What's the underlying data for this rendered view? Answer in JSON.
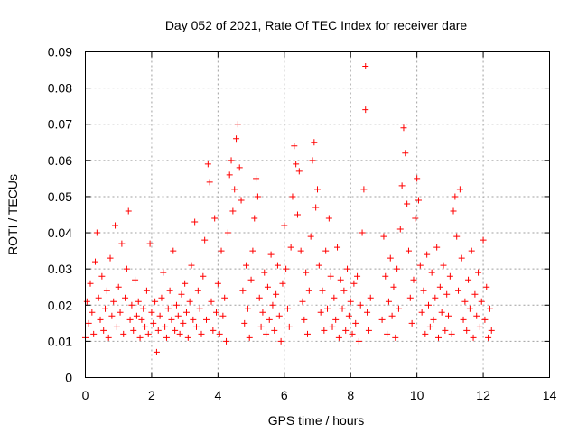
{
  "chart_data": {
    "type": "scatter",
    "title": "Day 052 of 2021, Rate Of TEC Index for receiver dare",
    "xlabel": "GPS time / hours",
    "ylabel": "ROTI / TECUs",
    "xlim": [
      0,
      14
    ],
    "ylim": [
      0,
      0.09
    ],
    "x_ticks": [
      "0",
      "2",
      "4",
      "6",
      "8",
      "10",
      "12",
      "14"
    ],
    "y_ticks": [
      "0",
      "0.01",
      "0.02",
      "0.03",
      "0.04",
      "0.05",
      "0.06",
      "0.07",
      "0.08",
      "0.09"
    ],
    "grid": true,
    "marker": "+",
    "color": "#ff0000",
    "series": [
      {
        "values": [
          [
            0.0,
            0.011
          ],
          [
            0.05,
            0.021
          ],
          [
            0.1,
            0.015
          ],
          [
            0.15,
            0.026
          ],
          [
            0.2,
            0.018
          ],
          [
            0.25,
            0.012
          ],
          [
            0.3,
            0.032
          ],
          [
            0.35,
            0.04
          ],
          [
            0.4,
            0.022
          ],
          [
            0.45,
            0.016
          ],
          [
            0.5,
            0.028
          ],
          [
            0.55,
            0.013
          ],
          [
            0.6,
            0.019
          ],
          [
            0.65,
            0.024
          ],
          [
            0.7,
            0.011
          ],
          [
            0.75,
            0.033
          ],
          [
            0.8,
            0.017
          ],
          [
            0.85,
            0.021
          ],
          [
            0.9,
            0.042
          ],
          [
            0.95,
            0.014
          ],
          [
            1.0,
            0.025
          ],
          [
            1.05,
            0.018
          ],
          [
            1.1,
            0.037
          ],
          [
            1.15,
            0.012
          ],
          [
            1.2,
            0.022
          ],
          [
            1.25,
            0.03
          ],
          [
            1.3,
            0.046
          ],
          [
            1.35,
            0.016
          ],
          [
            1.4,
            0.02
          ],
          [
            1.45,
            0.013
          ],
          [
            1.5,
            0.027
          ],
          [
            1.55,
            0.017
          ],
          [
            1.6,
            0.021
          ],
          [
            1.65,
            0.011
          ],
          [
            1.7,
            0.016
          ],
          [
            1.75,
            0.019
          ],
          [
            1.8,
            0.014
          ],
          [
            1.85,
            0.024
          ],
          [
            1.9,
            0.012
          ],
          [
            1.95,
            0.037
          ],
          [
            2.0,
            0.018
          ],
          [
            2.05,
            0.015
          ],
          [
            2.1,
            0.021
          ],
          [
            2.15,
            0.007
          ],
          [
            2.2,
            0.013
          ],
          [
            2.25,
            0.017
          ],
          [
            2.3,
            0.022
          ],
          [
            2.35,
            0.029
          ],
          [
            2.4,
            0.014
          ],
          [
            2.45,
            0.011
          ],
          [
            2.5,
            0.019
          ],
          [
            2.55,
            0.024
          ],
          [
            2.6,
            0.016
          ],
          [
            2.65,
            0.035
          ],
          [
            2.7,
            0.013
          ],
          [
            2.75,
            0.02
          ],
          [
            2.8,
            0.017
          ],
          [
            2.85,
            0.012
          ],
          [
            2.9,
            0.023
          ],
          [
            2.95,
            0.015
          ],
          [
            3.0,
            0.026
          ],
          [
            3.05,
            0.018
          ],
          [
            3.1,
            0.011
          ],
          [
            3.15,
            0.021
          ],
          [
            3.2,
            0.031
          ],
          [
            3.25,
            0.016
          ],
          [
            3.3,
            0.043
          ],
          [
            3.35,
            0.014
          ],
          [
            3.4,
            0.024
          ],
          [
            3.45,
            0.019
          ],
          [
            3.5,
            0.012
          ],
          [
            3.55,
            0.028
          ],
          [
            3.6,
            0.038
          ],
          [
            3.65,
            0.016
          ],
          [
            3.7,
            0.059
          ],
          [
            3.75,
            0.054
          ],
          [
            3.8,
            0.021
          ],
          [
            3.85,
            0.013
          ],
          [
            3.9,
            0.044
          ],
          [
            3.95,
            0.018
          ],
          [
            4.0,
            0.026
          ],
          [
            4.05,
            0.012
          ],
          [
            4.1,
            0.035
          ],
          [
            4.15,
            0.017
          ],
          [
            4.2,
            0.022
          ],
          [
            4.25,
            0.01
          ],
          [
            4.3,
            0.04
          ],
          [
            4.35,
            0.056
          ],
          [
            4.4,
            0.06
          ],
          [
            4.45,
            0.046
          ],
          [
            4.5,
            0.052
          ],
          [
            4.55,
            0.066
          ],
          [
            4.6,
            0.07
          ],
          [
            4.65,
            0.058
          ],
          [
            4.7,
            0.049
          ],
          [
            4.75,
            0.024
          ],
          [
            4.8,
            0.015
          ],
          [
            4.85,
            0.031
          ],
          [
            4.9,
            0.019
          ],
          [
            4.95,
            0.011
          ],
          [
            5.0,
            0.027
          ],
          [
            5.05,
            0.035
          ],
          [
            5.1,
            0.044
          ],
          [
            5.15,
            0.055
          ],
          [
            5.2,
            0.05
          ],
          [
            5.25,
            0.022
          ],
          [
            5.3,
            0.014
          ],
          [
            5.35,
            0.018
          ],
          [
            5.4,
            0.029
          ],
          [
            5.45,
            0.012
          ],
          [
            5.5,
            0.025
          ],
          [
            5.55,
            0.016
          ],
          [
            5.6,
            0.034
          ],
          [
            5.65,
            0.02
          ],
          [
            5.7,
            0.013
          ],
          [
            5.75,
            0.023
          ],
          [
            5.8,
            0.031
          ],
          [
            5.85,
            0.017
          ],
          [
            5.9,
            0.01
          ],
          [
            5.95,
            0.026
          ],
          [
            6.0,
            0.042
          ],
          [
            6.05,
            0.03
          ],
          [
            6.1,
            0.019
          ],
          [
            6.15,
            0.014
          ],
          [
            6.2,
            0.036
          ],
          [
            6.25,
            0.05
          ],
          [
            6.3,
            0.064
          ],
          [
            6.35,
            0.059
          ],
          [
            6.4,
            0.045
          ],
          [
            6.45,
            0.057
          ],
          [
            6.5,
            0.035
          ],
          [
            6.55,
            0.021
          ],
          [
            6.6,
            0.016
          ],
          [
            6.65,
            0.029
          ],
          [
            6.7,
            0.012
          ],
          [
            6.75,
            0.024
          ],
          [
            6.8,
            0.039
          ],
          [
            6.85,
            0.06
          ],
          [
            6.9,
            0.065
          ],
          [
            6.95,
            0.047
          ],
          [
            7.0,
            0.052
          ],
          [
            7.05,
            0.031
          ],
          [
            7.1,
            0.018
          ],
          [
            7.15,
            0.024
          ],
          [
            7.2,
            0.013
          ],
          [
            7.25,
            0.035
          ],
          [
            7.3,
            0.019
          ],
          [
            7.35,
            0.044
          ],
          [
            7.4,
            0.028
          ],
          [
            7.45,
            0.014
          ],
          [
            7.5,
            0.022
          ],
          [
            7.55,
            0.016
          ],
          [
            7.6,
            0.036
          ],
          [
            7.65,
            0.011
          ],
          [
            7.7,
            0.027
          ],
          [
            7.75,
            0.019
          ],
          [
            7.8,
            0.024
          ],
          [
            7.85,
            0.013
          ],
          [
            7.9,
            0.03
          ],
          [
            7.95,
            0.017
          ],
          [
            8.0,
            0.021
          ],
          [
            8.05,
            0.012
          ],
          [
            8.1,
            0.026
          ],
          [
            8.15,
            0.015
          ],
          [
            8.2,
            0.028
          ],
          [
            8.25,
            0.01
          ],
          [
            8.3,
            0.02
          ],
          [
            8.35,
            0.04
          ],
          [
            8.4,
            0.052
          ],
          [
            8.45,
            0.074
          ],
          [
            8.45,
            0.086
          ],
          [
            8.5,
            0.018
          ],
          [
            8.55,
            0.013
          ],
          [
            8.6,
            0.022
          ],
          [
            8.95,
            0.016
          ],
          [
            9.0,
            0.039
          ],
          [
            9.05,
            0.028
          ],
          [
            9.1,
            0.012
          ],
          [
            9.15,
            0.021
          ],
          [
            9.2,
            0.033
          ],
          [
            9.25,
            0.017
          ],
          [
            9.3,
            0.025
          ],
          [
            9.35,
            0.011
          ],
          [
            9.4,
            0.03
          ],
          [
            9.45,
            0.019
          ],
          [
            9.5,
            0.041
          ],
          [
            9.55,
            0.053
          ],
          [
            9.6,
            0.069
          ],
          [
            9.65,
            0.062
          ],
          [
            9.7,
            0.048
          ],
          [
            9.75,
            0.035
          ],
          [
            9.8,
            0.022
          ],
          [
            9.85,
            0.015
          ],
          [
            9.9,
            0.027
          ],
          [
            9.95,
            0.044
          ],
          [
            10.0,
            0.055
          ],
          [
            10.05,
            0.049
          ],
          [
            10.1,
            0.031
          ],
          [
            10.15,
            0.018
          ],
          [
            10.2,
            0.024
          ],
          [
            10.25,
            0.012
          ],
          [
            10.3,
            0.034
          ],
          [
            10.35,
            0.02
          ],
          [
            10.4,
            0.014
          ],
          [
            10.45,
            0.029
          ],
          [
            10.5,
            0.016
          ],
          [
            10.55,
            0.022
          ],
          [
            10.6,
            0.036
          ],
          [
            10.65,
            0.011
          ],
          [
            10.7,
            0.025
          ],
          [
            10.75,
            0.018
          ],
          [
            10.8,
            0.031
          ],
          [
            10.85,
            0.013
          ],
          [
            10.9,
            0.023
          ],
          [
            10.95,
            0.017
          ],
          [
            11.0,
            0.028
          ],
          [
            11.05,
            0.012
          ],
          [
            11.1,
            0.046
          ],
          [
            11.15,
            0.05
          ],
          [
            11.2,
            0.039
          ],
          [
            11.25,
            0.024
          ],
          [
            11.3,
            0.052
          ],
          [
            11.35,
            0.033
          ],
          [
            11.4,
            0.016
          ],
          [
            11.45,
            0.021
          ],
          [
            11.5,
            0.013
          ],
          [
            11.55,
            0.027
          ],
          [
            11.6,
            0.019
          ],
          [
            11.65,
            0.035
          ],
          [
            11.7,
            0.011
          ],
          [
            11.75,
            0.023
          ],
          [
            11.8,
            0.017
          ],
          [
            11.85,
            0.029
          ],
          [
            11.9,
            0.014
          ],
          [
            11.95,
            0.021
          ],
          [
            12.0,
            0.038
          ],
          [
            12.05,
            0.016
          ],
          [
            12.1,
            0.025
          ],
          [
            12.15,
            0.011
          ],
          [
            12.2,
            0.019
          ],
          [
            12.25,
            0.013
          ]
        ]
      }
    ]
  }
}
